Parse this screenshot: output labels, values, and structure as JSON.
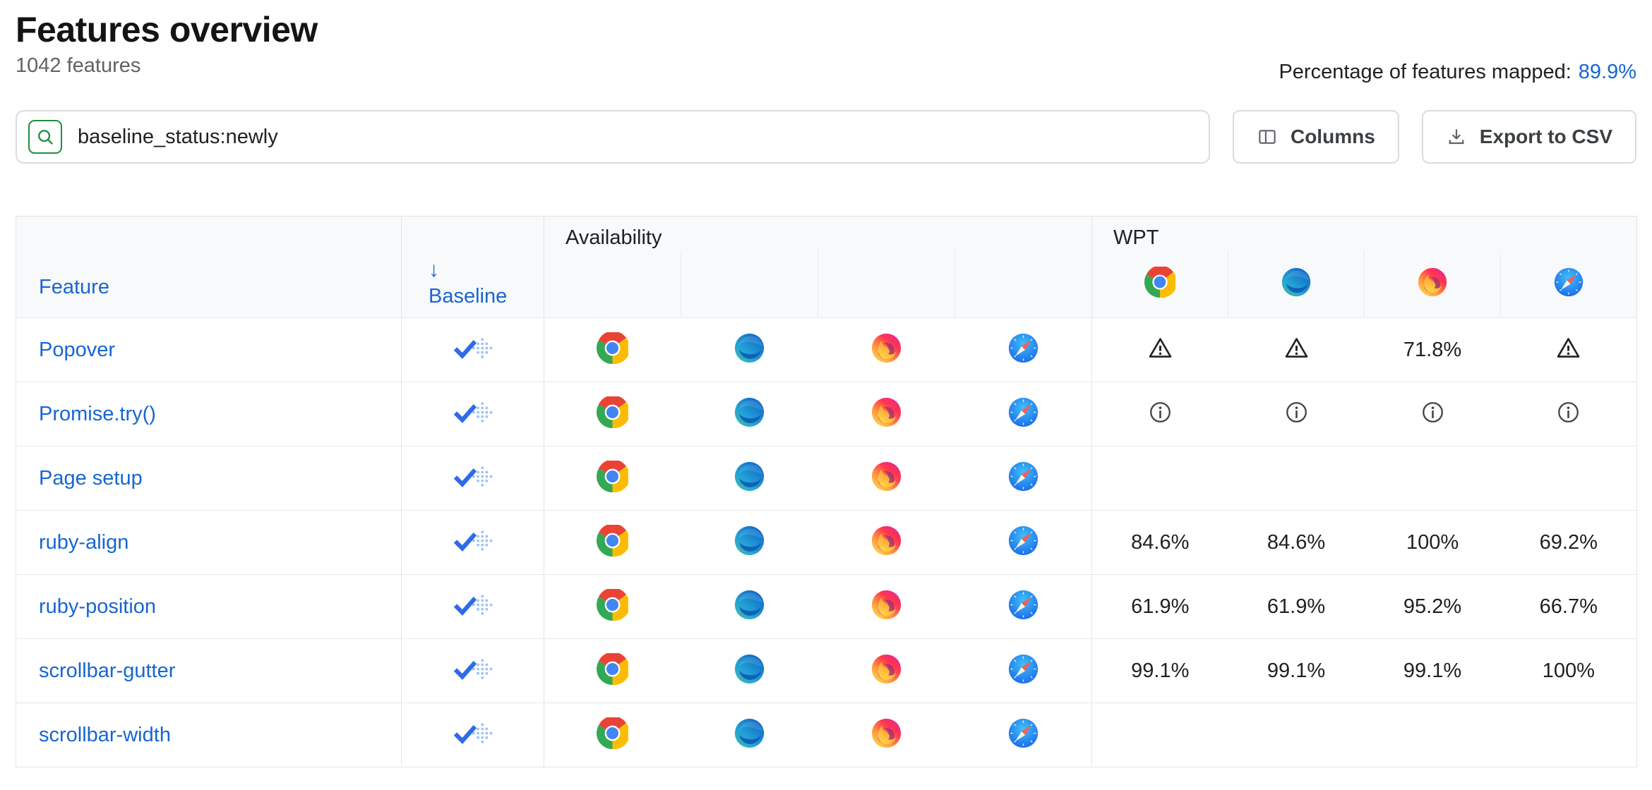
{
  "header": {
    "title": "Features overview",
    "subtitle": "1042 features",
    "mapped_label": "Percentage of features mapped:",
    "mapped_value": "89.9%"
  },
  "toolbar": {
    "search_value": "baseline_status:newly",
    "columns_label": "Columns",
    "export_label": "Export to CSV"
  },
  "table": {
    "availability_group": "Availability",
    "wpt_group": "WPT",
    "feature_header": "Feature",
    "sort_arrow": "↓",
    "baseline_header": "Baseline",
    "wpt_browsers": [
      "chrome",
      "edge",
      "firefox",
      "safari"
    ],
    "rows": [
      {
        "feature": "Popover",
        "baseline": "newly",
        "availability": [
          "chrome",
          "edge",
          "firefox",
          "safari"
        ],
        "wpt": [
          {
            "type": "warning"
          },
          {
            "type": "warning"
          },
          {
            "type": "value",
            "value": "71.8%"
          },
          {
            "type": "warning"
          }
        ]
      },
      {
        "feature": "Promise.try()",
        "baseline": "newly",
        "availability": [
          "chrome",
          "edge",
          "firefox",
          "safari"
        ],
        "wpt": [
          {
            "type": "info"
          },
          {
            "type": "info"
          },
          {
            "type": "info"
          },
          {
            "type": "info"
          }
        ]
      },
      {
        "feature": "Page setup",
        "baseline": "newly",
        "availability": [
          "chrome",
          "edge",
          "firefox",
          "safari"
        ],
        "wpt": [
          {
            "type": "empty"
          },
          {
            "type": "empty"
          },
          {
            "type": "empty"
          },
          {
            "type": "empty"
          }
        ]
      },
      {
        "feature": "ruby-align",
        "baseline": "newly",
        "availability": [
          "chrome",
          "edge",
          "firefox",
          "safari"
        ],
        "wpt": [
          {
            "type": "value",
            "value": "84.6%"
          },
          {
            "type": "value",
            "value": "84.6%"
          },
          {
            "type": "value",
            "value": "100%"
          },
          {
            "type": "value",
            "value": "69.2%"
          }
        ]
      },
      {
        "feature": "ruby-position",
        "baseline": "newly",
        "availability": [
          "chrome",
          "edge",
          "firefox",
          "safari"
        ],
        "wpt": [
          {
            "type": "value",
            "value": "61.9%"
          },
          {
            "type": "value",
            "value": "61.9%"
          },
          {
            "type": "value",
            "value": "95.2%"
          },
          {
            "type": "value",
            "value": "66.7%"
          }
        ]
      },
      {
        "feature": "scrollbar-gutter",
        "baseline": "newly",
        "availability": [
          "chrome",
          "edge",
          "firefox",
          "safari"
        ],
        "wpt": [
          {
            "type": "value",
            "value": "99.1%"
          },
          {
            "type": "value",
            "value": "99.1%"
          },
          {
            "type": "value",
            "value": "99.1%"
          },
          {
            "type": "value",
            "value": "100%"
          }
        ]
      },
      {
        "feature": "scrollbar-width",
        "baseline": "newly",
        "availability": [
          "chrome",
          "edge",
          "firefox",
          "safari"
        ],
        "wpt": [
          {
            "type": "empty"
          },
          {
            "type": "empty"
          },
          {
            "type": "empty"
          },
          {
            "type": "empty"
          }
        ]
      }
    ]
  }
}
